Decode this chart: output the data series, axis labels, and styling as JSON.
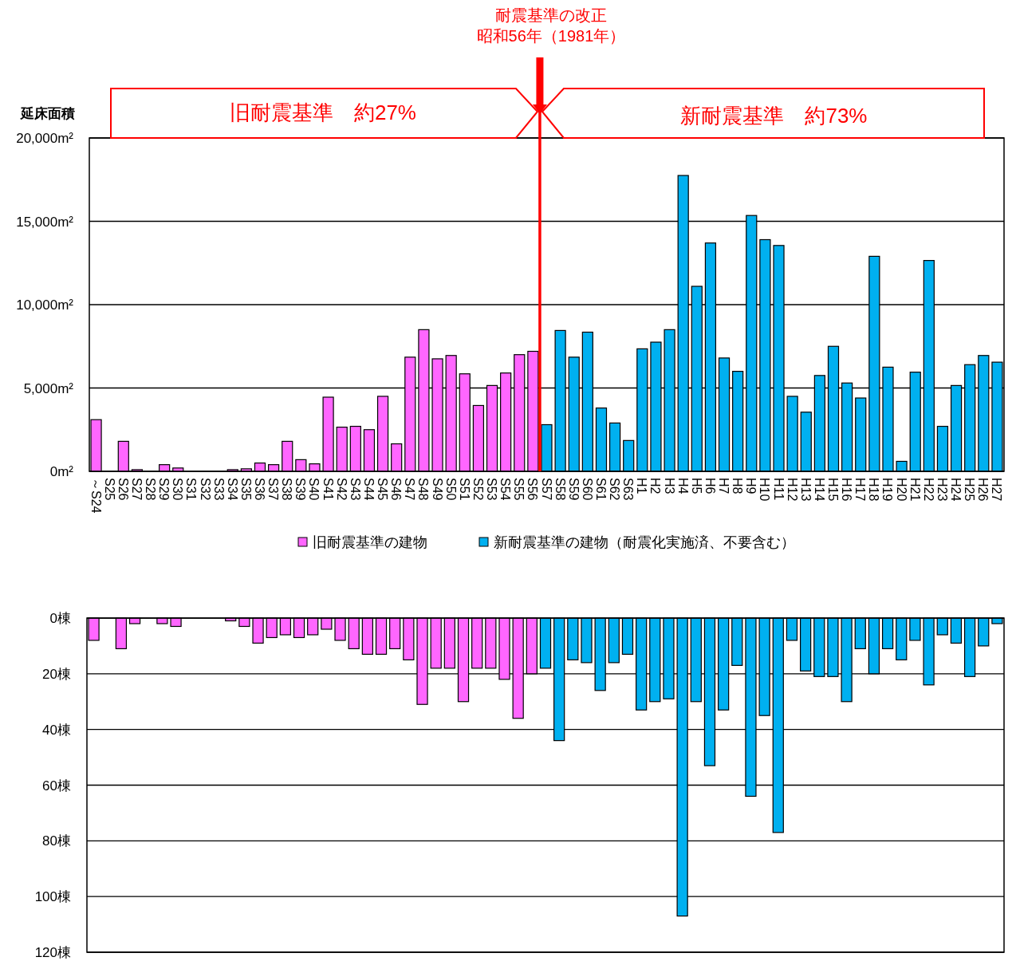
{
  "chart_data": [
    {
      "type": "bar",
      "title": "耐震基準の改正",
      "ylabel": "延床面積",
      "ylim": [
        0,
        20000
      ],
      "yticks": [
        {
          "value": 0,
          "label": "0m²"
        },
        {
          "value": 5000,
          "label": "5,000m²"
        },
        {
          "value": 10000,
          "label": "10,000m²"
        },
        {
          "value": 15000,
          "label": "15,000m²"
        },
        {
          "value": 20000,
          "label": "20,000m²"
        }
      ],
      "grid": "y",
      "legend": "bottom",
      "categories": [
        "～S24",
        "S25",
        "S26",
        "S27",
        "S28",
        "S29",
        "S30",
        "S31",
        "S32",
        "S33",
        "S34",
        "S35",
        "S36",
        "S37",
        "S38",
        "S39",
        "S40",
        "S41",
        "S42",
        "S43",
        "S44",
        "S45",
        "S46",
        "S47",
        "S48",
        "S49",
        "S50",
        "S51",
        "S52",
        "S53",
        "S54",
        "S55",
        "S56",
        "S57",
        "S58",
        "S59",
        "S60",
        "S61",
        "S62",
        "S63",
        "H1",
        "H2",
        "H3",
        "H4",
        "H5",
        "H6",
        "H7",
        "H8",
        "H9",
        "H10",
        "H11",
        "H12",
        "H13",
        "H14",
        "H15",
        "H16",
        "H17",
        "H18",
        "H19",
        "H20",
        "H21",
        "H22",
        "H23",
        "H24",
        "H25",
        "H26",
        "H27"
      ],
      "series": [
        {
          "name": "旧耐震基準の建物",
          "color": "#ff66ff",
          "values": [
            3100,
            0,
            1800,
            100,
            0,
            400,
            200,
            0,
            0,
            0,
            100,
            150,
            500,
            400,
            1800,
            700,
            450,
            4450,
            2650,
            2700,
            2500,
            4500,
            1650,
            6850,
            8500,
            6750,
            6950,
            5850,
            3950,
            5150,
            5900,
            7000,
            7200,
            null,
            null,
            null,
            null,
            null,
            null,
            null,
            null,
            null,
            null,
            null,
            null,
            null,
            null,
            null,
            null,
            null,
            null,
            null,
            null,
            null,
            null,
            null,
            null,
            null,
            null,
            null,
            null,
            null,
            null,
            null,
            null,
            null,
            null
          ]
        },
        {
          "name": "新耐震基準の建物（耐震化実施済、不要含む）",
          "color": "#00b0f0",
          "values": [
            null,
            null,
            null,
            null,
            null,
            null,
            null,
            null,
            null,
            null,
            null,
            null,
            null,
            null,
            null,
            null,
            null,
            null,
            null,
            null,
            null,
            null,
            null,
            null,
            null,
            null,
            null,
            null,
            null,
            null,
            null,
            null,
            null,
            2800,
            8450,
            6850,
            8350,
            3800,
            2900,
            1850,
            7350,
            7750,
            8500,
            17750,
            11100,
            13700,
            6800,
            6000,
            15350,
            13900,
            13550,
            4500,
            3550,
            5750,
            7500,
            5300,
            4400,
            12900,
            6250,
            600,
            5950,
            12650,
            2700,
            5150,
            6400,
            6950,
            6550
          ]
        }
      ],
      "ref_lines": [
        {
          "axis": "x",
          "value": "S57",
          "label": "昭和56年（1981年）",
          "color": "#ff0000"
        }
      ],
      "annotations": [
        "旧耐震基準　約27%",
        "新耐震基準　約73%"
      ]
    },
    {
      "type": "bar",
      "ylim": [
        120,
        0
      ],
      "yticks": [
        {
          "value": 0,
          "label": "0棟"
        },
        {
          "value": 20,
          "label": "20棟"
        },
        {
          "value": 40,
          "label": "40棟"
        },
        {
          "value": 60,
          "label": "60棟"
        },
        {
          "value": 80,
          "label": "80棟"
        },
        {
          "value": 100,
          "label": "100棟"
        },
        {
          "value": 120,
          "label": "120棟"
        }
      ],
      "grid": "y",
      "tick_labels": "y",
      "categories": [
        null,
        null,
        null,
        null,
        null,
        null,
        null,
        null,
        null,
        null,
        null,
        null,
        null,
        null,
        null,
        null,
        null,
        null,
        null,
        null,
        null,
        null,
        null,
        null,
        null,
        null,
        null,
        null,
        null,
        null,
        null,
        null,
        null,
        null,
        null,
        null,
        null,
        null,
        null,
        null,
        null,
        null,
        null,
        null,
        null,
        null,
        null,
        null,
        null,
        null,
        null,
        null,
        null,
        null,
        null,
        null,
        null,
        null,
        null,
        null,
        null,
        null,
        null,
        null,
        null,
        null,
        null
      ],
      "series": [
        {
          "color": "#ff66ff",
          "values": [
            8,
            0,
            11,
            2,
            0,
            2,
            3,
            0,
            0,
            0,
            1,
            3,
            9,
            7,
            6,
            7,
            6,
            4,
            8,
            11,
            13,
            13,
            11,
            15,
            31,
            18,
            18,
            30,
            18,
            18,
            22,
            36,
            20,
            null,
            null,
            null,
            null,
            null,
            null,
            null,
            null,
            null,
            null,
            null,
            null,
            null,
            null,
            null,
            null,
            null,
            null,
            null,
            null,
            null,
            null,
            null,
            null,
            null,
            null,
            null,
            null,
            null,
            null,
            null,
            null,
            null,
            null
          ]
        },
        {
          "color": "#00b0f0",
          "values": [
            null,
            null,
            null,
            null,
            null,
            null,
            null,
            null,
            null,
            null,
            null,
            null,
            null,
            null,
            null,
            null,
            null,
            null,
            null,
            null,
            null,
            null,
            null,
            null,
            null,
            null,
            null,
            null,
            null,
            null,
            null,
            null,
            null,
            18,
            44,
            15,
            16,
            26,
            16,
            13,
            33,
            30,
            29,
            107,
            30,
            53,
            33,
            17,
            64,
            35,
            77,
            8,
            19,
            21,
            21,
            30,
            11,
            20,
            11,
            15,
            8,
            24,
            6,
            9,
            21,
            10,
            2
          ]
        }
      ]
    }
  ]
}
